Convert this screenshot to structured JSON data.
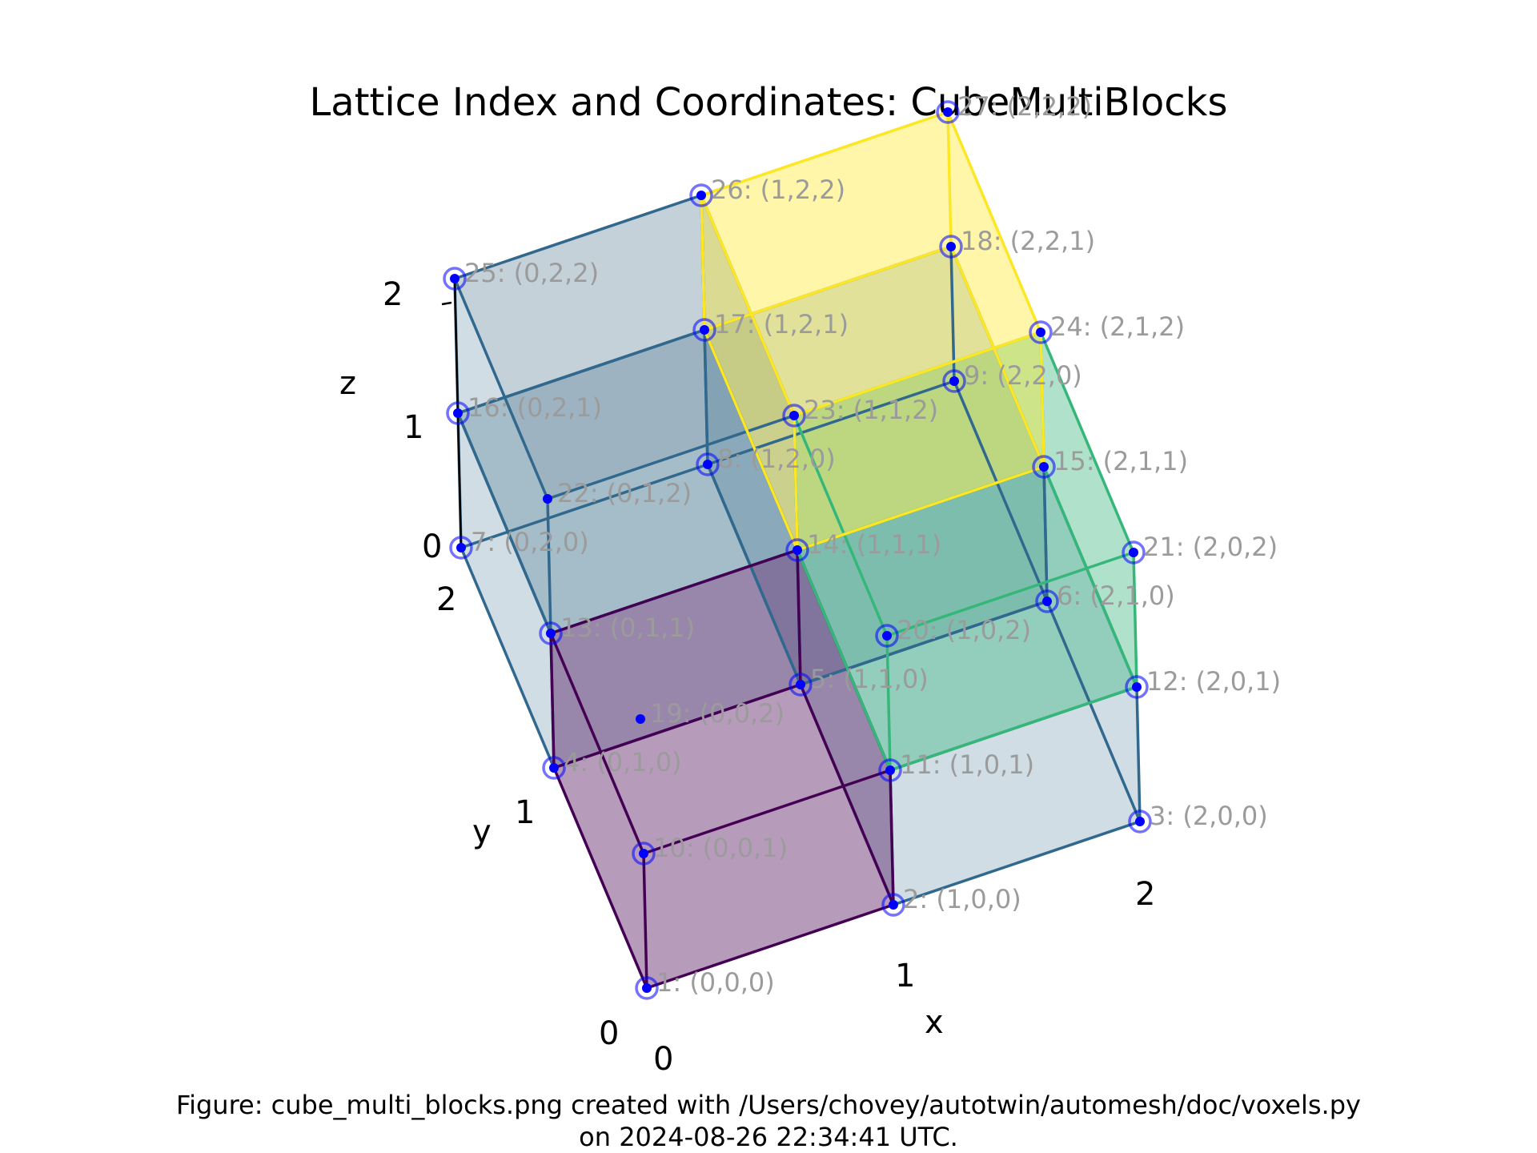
{
  "title": "Lattice Index and Coordinates: CubeMultiBlocks",
  "caption": {
    "line1": "Figure: cube_multi_blocks.png created with /Users/chovey/autotwin/automesh/doc/voxels.py",
    "line2": "on 2024-08-26 22:34:41 UTC."
  },
  "axes": {
    "x": {
      "label": "x",
      "ticks": [
        "0",
        "1",
        "2"
      ]
    },
    "y": {
      "label": "y",
      "ticks": [
        "0",
        "1",
        "2"
      ]
    },
    "z": {
      "label": "z",
      "ticks": [
        "0",
        "1",
        "2"
      ]
    }
  },
  "colors": {
    "block_000": "#440154",
    "block_100": "#35b779",
    "block_011": "#fde725",
    "outline": "#31688e",
    "marker": "#0000ff",
    "label": "#9b9b9b",
    "empty_voxel": "#b0b0b0"
  },
  "blocks": [
    {
      "origin": [
        0,
        0,
        0
      ],
      "color": "#440154"
    },
    {
      "origin": [
        1,
        0,
        1
      ],
      "color": "#35b779"
    },
    {
      "origin": [
        1,
        1,
        1
      ],
      "color": "#fde725"
    }
  ],
  "nodes": [
    {
      "index": 1,
      "coord": [
        0,
        0,
        0
      ],
      "label": "1: (0,0,0)"
    },
    {
      "index": 2,
      "coord": [
        1,
        0,
        0
      ],
      "label": "2: (1,0,0)"
    },
    {
      "index": 3,
      "coord": [
        2,
        0,
        0
      ],
      "label": "3: (2,0,0)"
    },
    {
      "index": 4,
      "coord": [
        0,
        1,
        0
      ],
      "label": "4: (0,1,0)"
    },
    {
      "index": 5,
      "coord": [
        1,
        1,
        0
      ],
      "label": "5: (1,1,0)"
    },
    {
      "index": 6,
      "coord": [
        2,
        1,
        0
      ],
      "label": "6: (2,1,0)"
    },
    {
      "index": 7,
      "coord": [
        0,
        2,
        0
      ],
      "label": "7: (0,2,0)"
    },
    {
      "index": 8,
      "coord": [
        1,
        2,
        0
      ],
      "label": "8: (1,2,0)"
    },
    {
      "index": 9,
      "coord": [
        2,
        2,
        0
      ],
      "label": "9: (2,2,0)"
    },
    {
      "index": 10,
      "coord": [
        0,
        0,
        1
      ],
      "label": "10: (0,0,1)"
    },
    {
      "index": 11,
      "coord": [
        1,
        0,
        1
      ],
      "label": "11: (1,0,1)"
    },
    {
      "index": 12,
      "coord": [
        2,
        0,
        1
      ],
      "label": "12: (2,0,1)"
    },
    {
      "index": 13,
      "coord": [
        0,
        1,
        1
      ],
      "label": "13: (0,1,1)"
    },
    {
      "index": 14,
      "coord": [
        1,
        1,
        1
      ],
      "label": "14: (1,1,1)"
    },
    {
      "index": 15,
      "coord": [
        2,
        1,
        1
      ],
      "label": "15: (2,1,1)"
    },
    {
      "index": 16,
      "coord": [
        0,
        2,
        1
      ],
      "label": "16: (0,2,1)"
    },
    {
      "index": 17,
      "coord": [
        1,
        2,
        1
      ],
      "label": "17: (1,2,1)"
    },
    {
      "index": 18,
      "coord": [
        2,
        2,
        1
      ],
      "label": "18: (2,2,1)"
    },
    {
      "index": 19,
      "coord": [
        0,
        0,
        2
      ],
      "label": "19: (0,0,2)"
    },
    {
      "index": 20,
      "coord": [
        1,
        0,
        2
      ],
      "label": "20: (1,0,2)"
    },
    {
      "index": 21,
      "coord": [
        2,
        0,
        2
      ],
      "label": "21: (2,0,2)"
    },
    {
      "index": 22,
      "coord": [
        0,
        1,
        2
      ],
      "label": "22: (0,1,2)"
    },
    {
      "index": 23,
      "coord": [
        1,
        1,
        2
      ],
      "label": "23: (1,1,2)"
    },
    {
      "index": 24,
      "coord": [
        2,
        1,
        2
      ],
      "label": "24: (2,1,2)"
    },
    {
      "index": 25,
      "coord": [
        0,
        2,
        2
      ],
      "label": "25: (0,2,2)"
    },
    {
      "index": 26,
      "coord": [
        1,
        2,
        2
      ],
      "label": "26: (1,2,2)"
    },
    {
      "index": 27,
      "coord": [
        2,
        2,
        2
      ],
      "label": "27: (2,2,2)"
    }
  ]
}
